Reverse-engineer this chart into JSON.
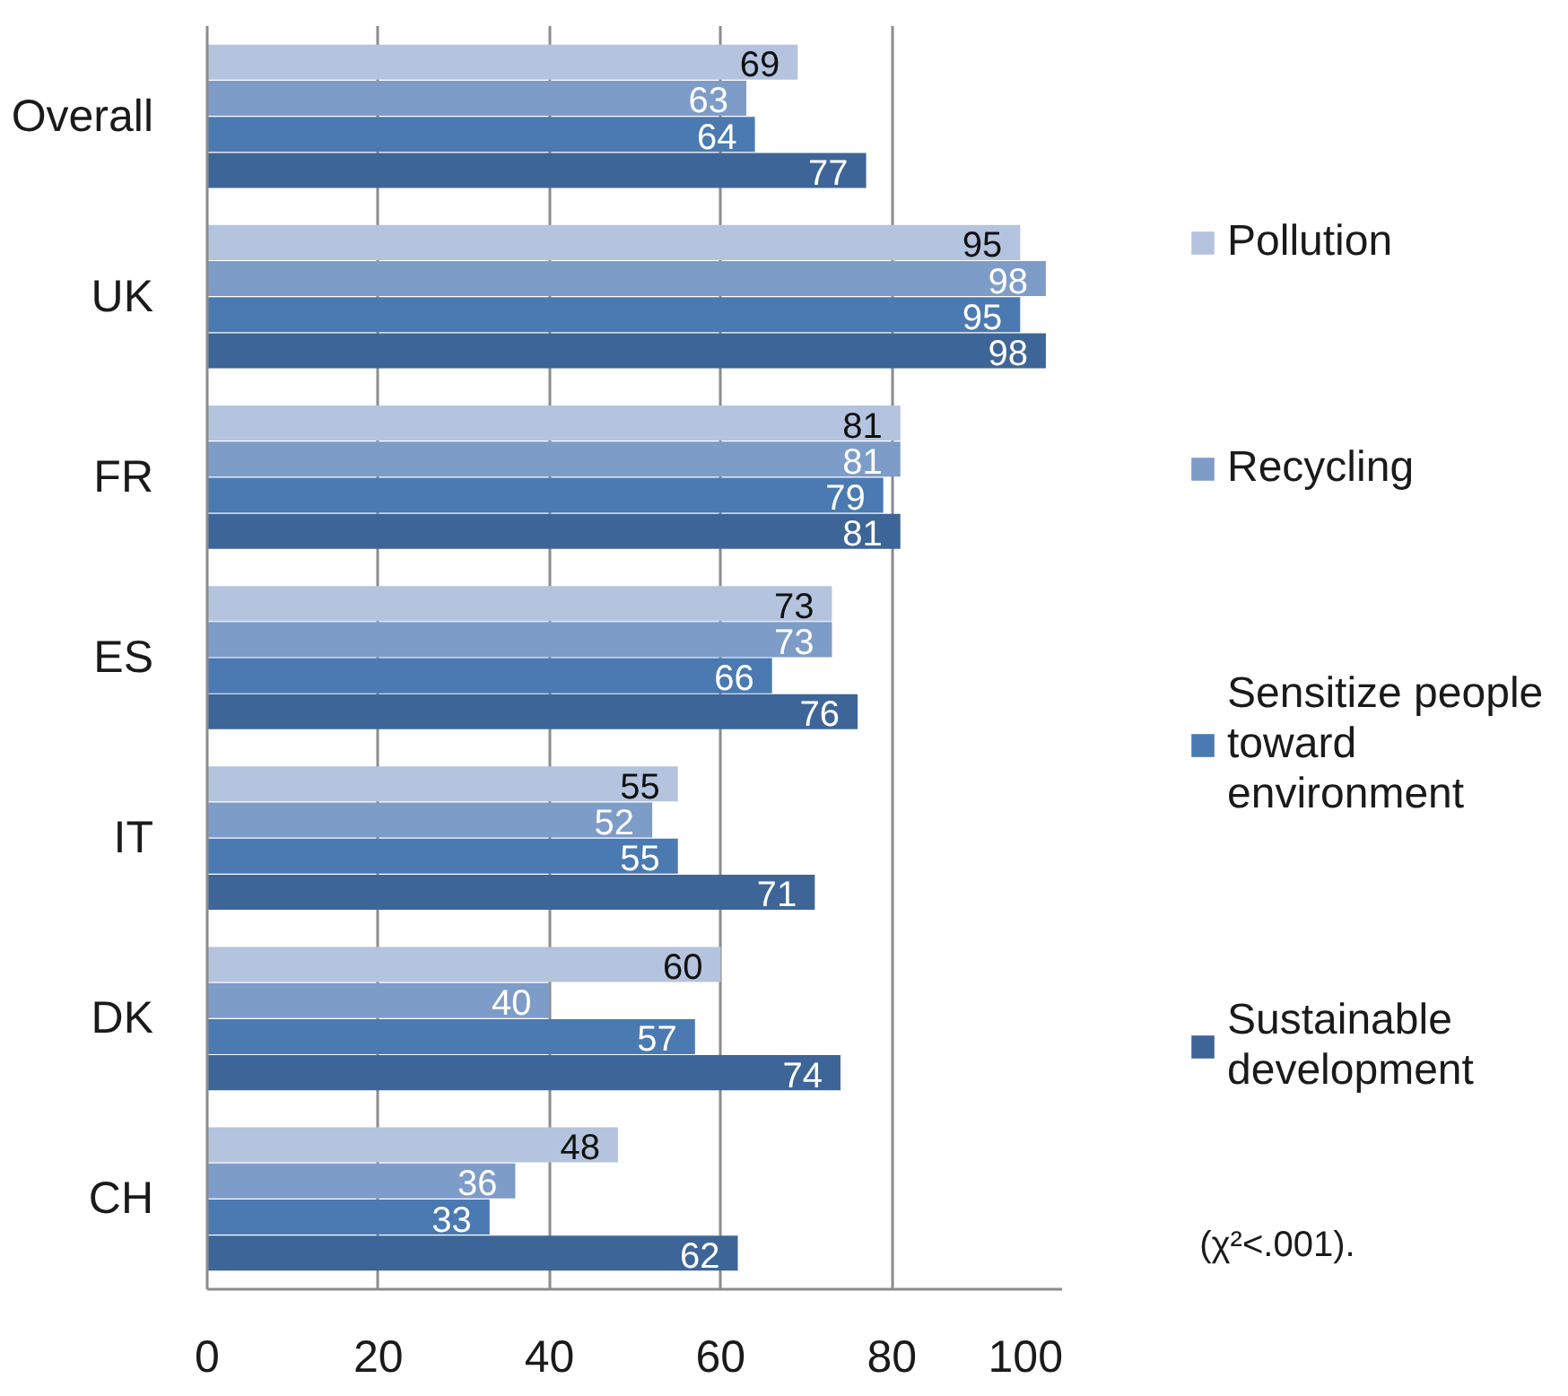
{
  "chart_data": {
    "type": "bar",
    "orientation": "horizontal",
    "categories": [
      "Overall",
      "UK",
      "FR",
      "ES",
      "IT",
      "DK",
      "CH"
    ],
    "series": [
      {
        "name": "Pollution",
        "color": "#b4c4de",
        "values": [
          69,
          95,
          81,
          73,
          55,
          60,
          48
        ]
      },
      {
        "name": "Recycling",
        "color": "#7e9cc8",
        "values": [
          63,
          98,
          81,
          73,
          52,
          40,
          36
        ]
      },
      {
        "name": "Sensitize people toward environment",
        "color": "#4a7ab1",
        "values": [
          64,
          95,
          79,
          66,
          55,
          57,
          33
        ]
      },
      {
        "name": "Sustainable development",
        "color": "#3e6597",
        "values": [
          77,
          98,
          81,
          76,
          71,
          74,
          62
        ]
      }
    ],
    "xlim": [
      0,
      100
    ],
    "xticks": [
      0,
      20,
      40,
      60,
      80,
      100
    ],
    "grid": "x",
    "legend": "right",
    "data_labels": true,
    "annotations": [
      "(χ²<.001)."
    ]
  }
}
